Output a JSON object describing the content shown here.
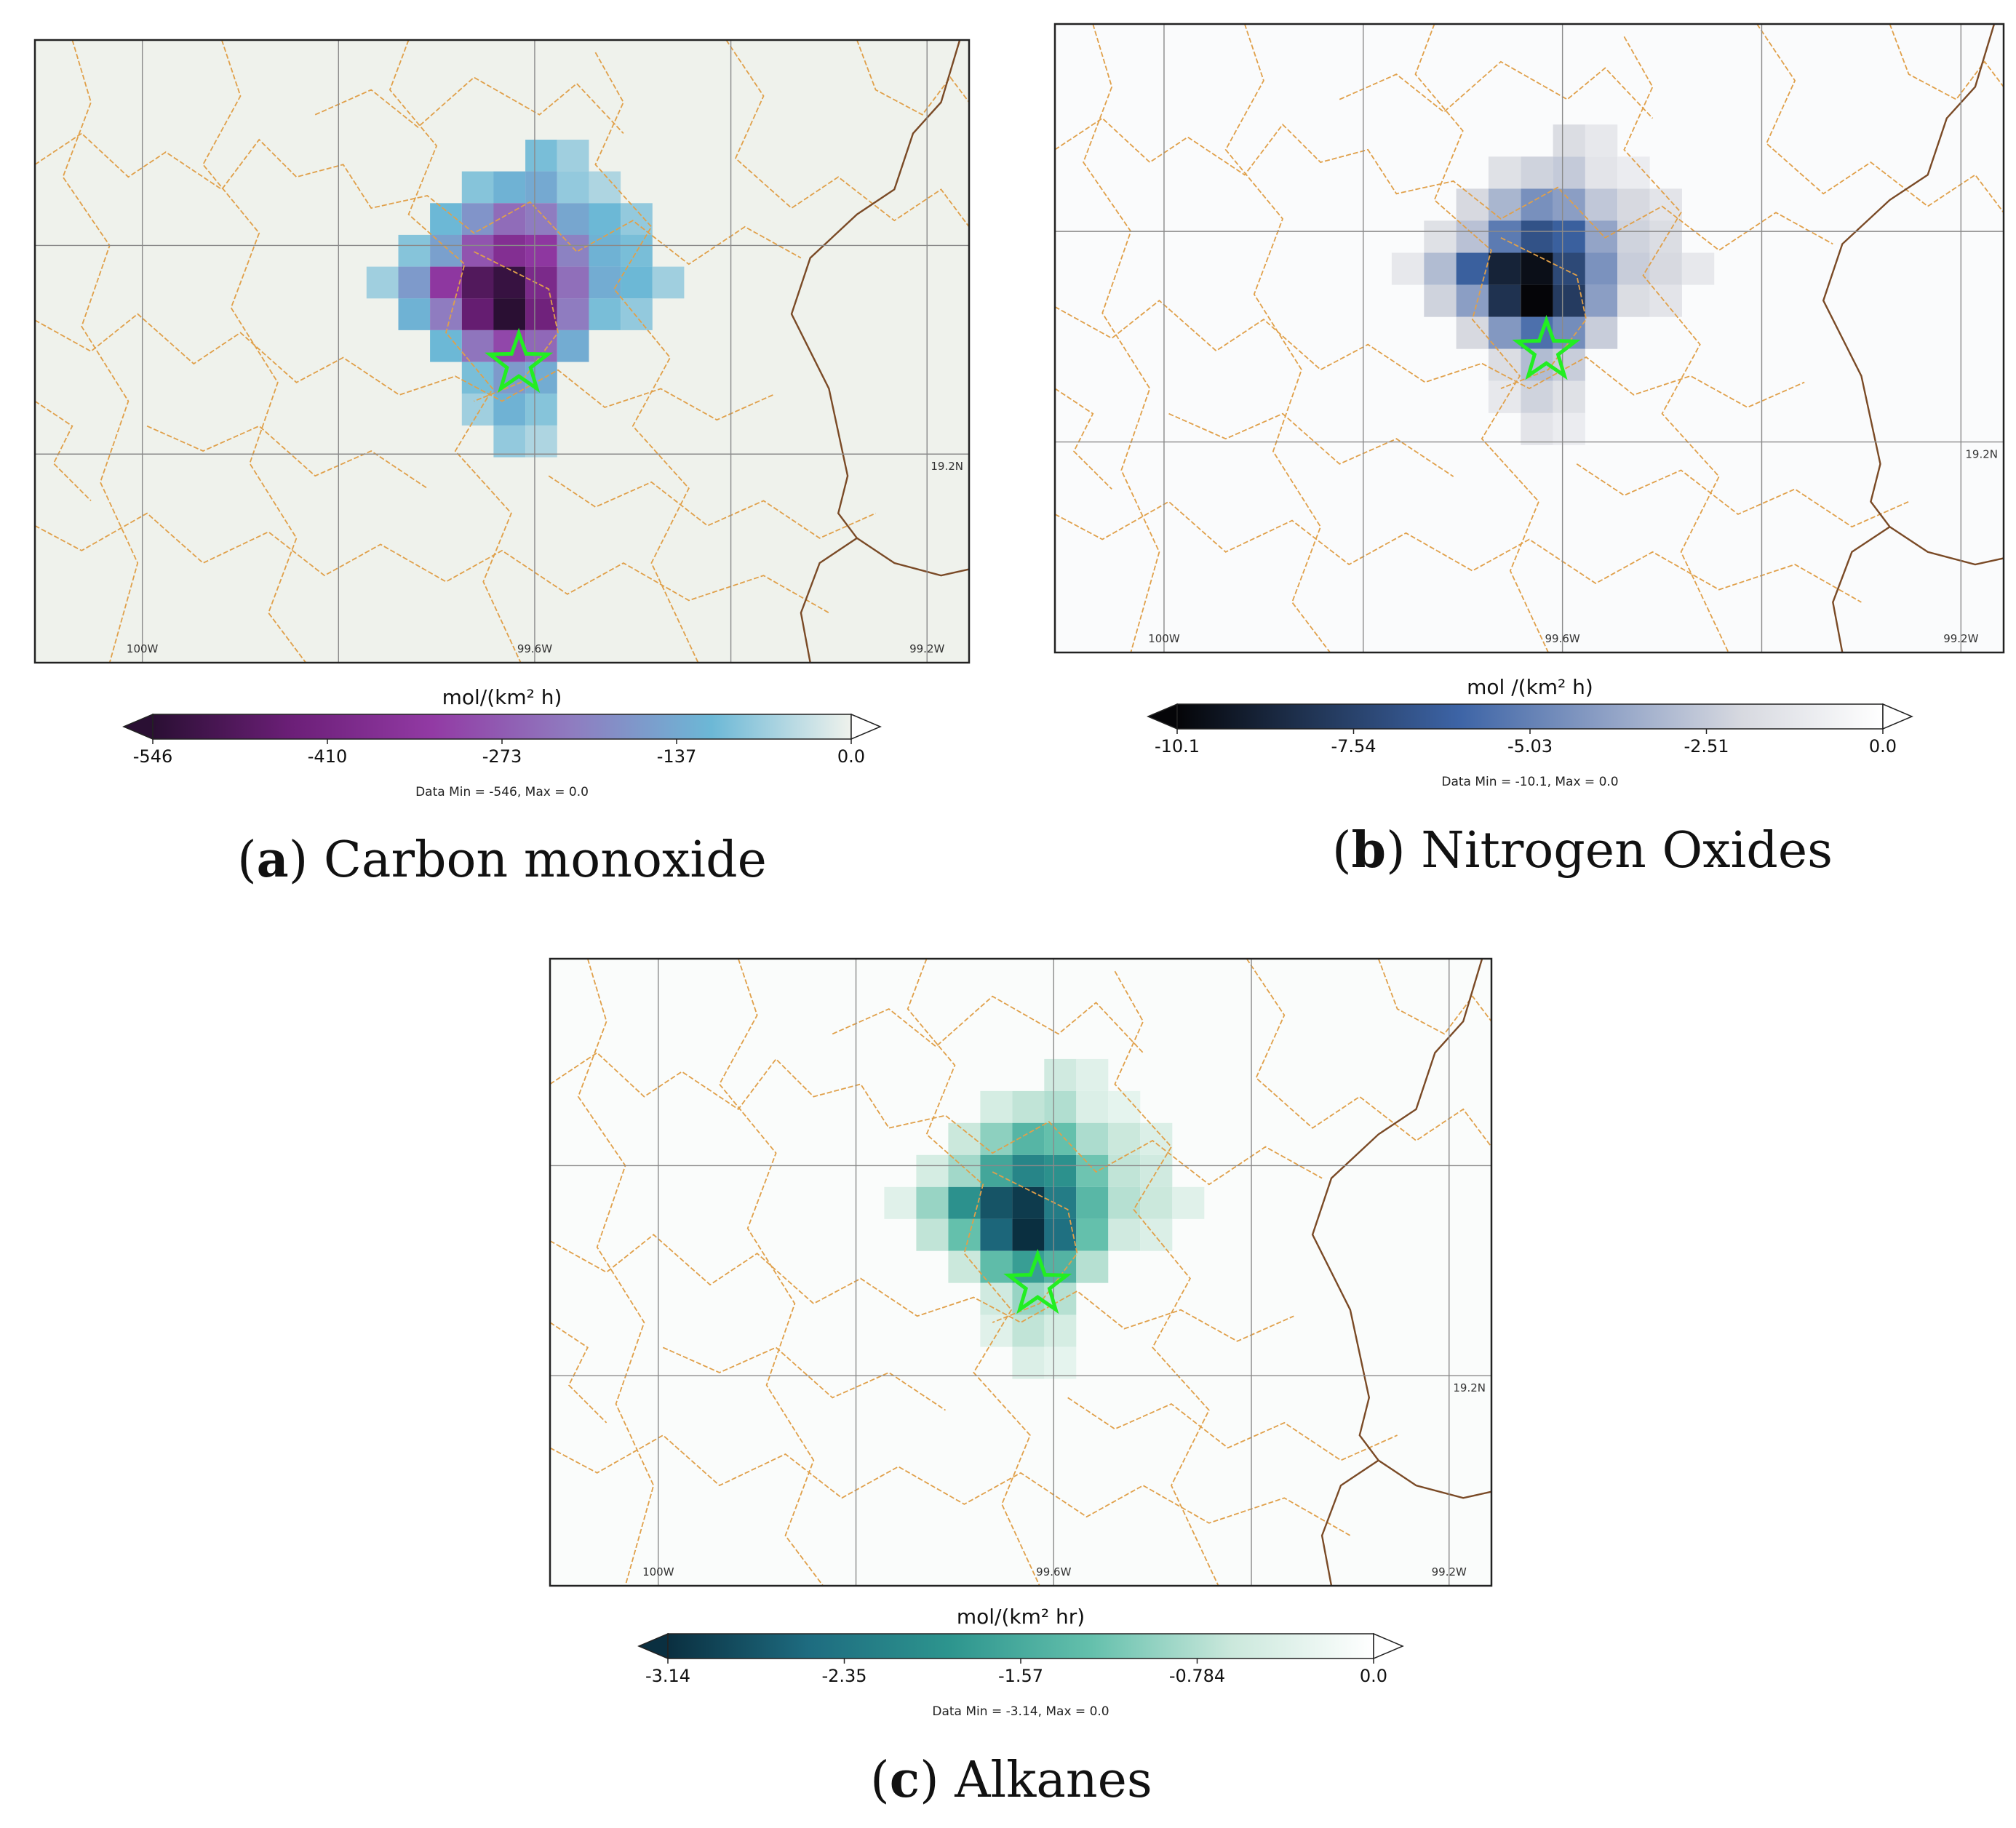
{
  "panels": [
    {
      "id": "a",
      "letter": "a",
      "name": "Carbon monoxide",
      "unit_label": "mol/(km² h)",
      "ticks": [
        "-546",
        "-410",
        "-273",
        "-137",
        "0.0"
      ],
      "data_min_max": "Data Min = -546, Max = 0.0",
      "lon_labels": [
        "100W",
        "99.6W",
        "99.2W"
      ],
      "lat_label": "19.2N",
      "colors": {
        "background": "#eff2ec",
        "scale": [
          "#2a0f33",
          "#6c1f78",
          "#923aa4",
          "#8f7cc0",
          "#6cb8d6",
          "#eff2ec"
        ]
      }
    },
    {
      "id": "b",
      "letter": "b",
      "name": "Nitrogen Oxides",
      "unit_label": "mol /(km² h)",
      "ticks": [
        "-10.1",
        "-7.54",
        "-5.03",
        "-2.51",
        "0.0"
      ],
      "data_min_max": "Data Min = -10.1, Max = 0.0",
      "lon_labels": [
        "100W",
        "99.6W",
        "99.2W"
      ],
      "lat_label": "19.2N",
      "colors": {
        "background": "#fafbfc",
        "scale": [
          "#050508",
          "#223758",
          "#3d64a6",
          "#8b9ec4",
          "#d7d9e0",
          "#ffffff"
        ]
      }
    },
    {
      "id": "c",
      "letter": "c",
      "name": "Alkanes",
      "unit_label": "mol/(km² hr)",
      "ticks": [
        "-3.14",
        "-2.35",
        "-1.57",
        "-0.784",
        "0.0"
      ],
      "data_min_max": "Data Min = -3.14, Max = 0.0",
      "lon_labels": [
        "100W",
        "99.6W",
        "99.2W"
      ],
      "lat_label": "19.2N",
      "colors": {
        "background": "#fafcfb",
        "scale": [
          "#0a2f40",
          "#1e6c80",
          "#2d958e",
          "#64c0ac",
          "#cbe8dc",
          "#ffffff"
        ]
      }
    }
  ],
  "colors": {
    "boundary": "#e0a04a",
    "country_border": "#7a4a26",
    "grid": "#8a8a8a",
    "marker": "#22ee22"
  },
  "icons": [
    "star-marker-icon",
    "colorbar-extend-min-triangle",
    "colorbar-extend-max-triangle"
  ]
}
